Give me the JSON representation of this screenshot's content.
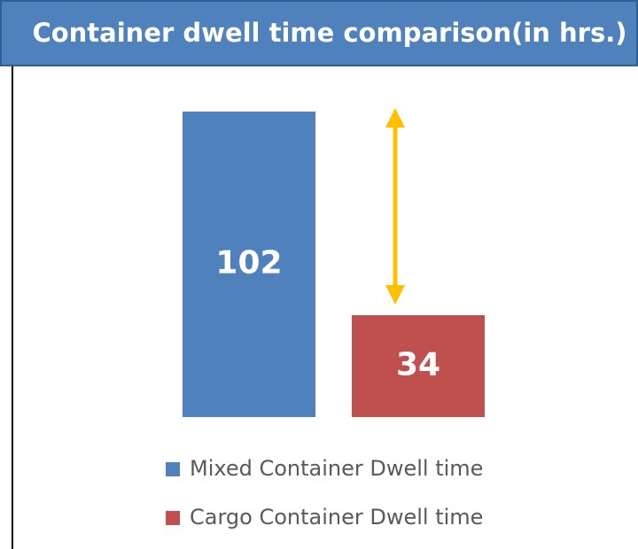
{
  "chart_data": {
    "type": "bar",
    "title": "Container dwell time comparison(in hrs.)",
    "series": [
      {
        "name": "Mixed Container Dwell time",
        "color": "#4f81bd",
        "values": [
          102
        ]
      },
      {
        "name": "Cargo Container Dwell time",
        "color": "#c0504d",
        "values": [
          34
        ]
      }
    ]
  }
}
